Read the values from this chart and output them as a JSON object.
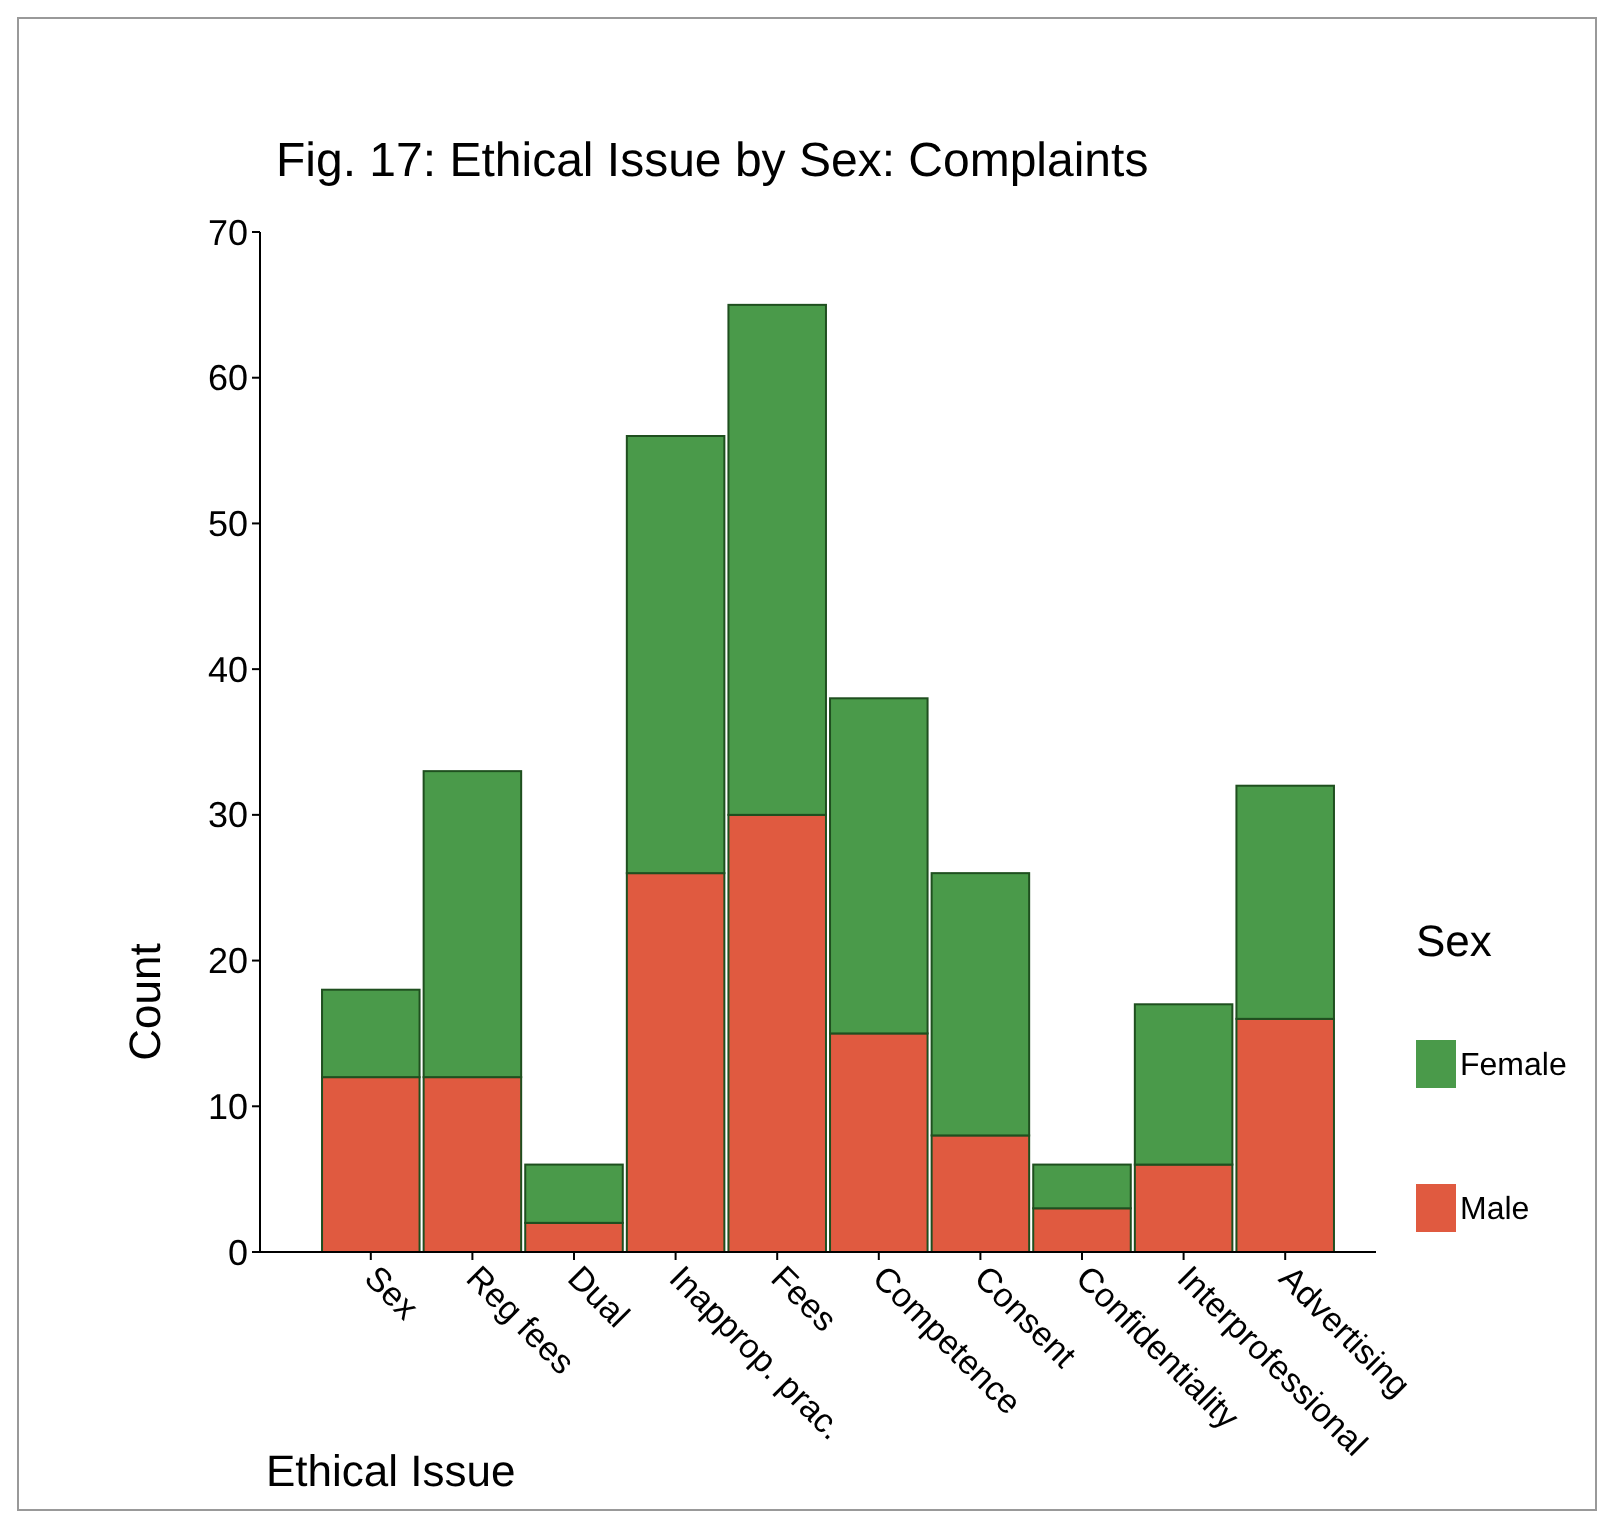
{
  "chart_data": {
    "type": "bar",
    "title": "Fig. 17: Ethical Issue by Sex: Complaints",
    "xlabel": "Ethical Issue",
    "ylabel": "Count",
    "legend_title": "Sex",
    "categories": [
      "Sex",
      "Reg fees",
      "Dual",
      "Inapprop. prac.",
      "Fees",
      "Competence",
      "Consent",
      "Confidentiality",
      "Interprofessional",
      "Advertising"
    ],
    "series": [
      {
        "name": "Male",
        "color": "#e05a40",
        "values": [
          12,
          12,
          2,
          26,
          30,
          15,
          8,
          3,
          6,
          16
        ]
      },
      {
        "name": "Female",
        "color": "#4a9a4a",
        "values": [
          6,
          21,
          4,
          30,
          35,
          23,
          18,
          3,
          11,
          16
        ]
      }
    ],
    "stacked": true,
    "ylim": [
      0,
      70
    ],
    "yticks": [
      0,
      10,
      20,
      30,
      40,
      50,
      60,
      70
    ],
    "grid": false,
    "legend": "right"
  }
}
